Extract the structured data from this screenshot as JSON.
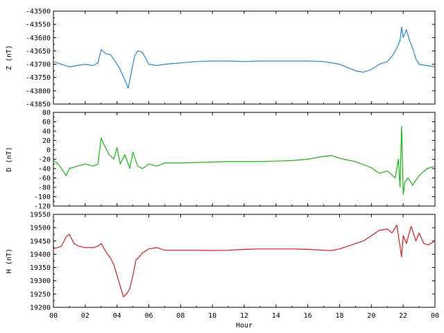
{
  "chart_data": [
    {
      "type": "line",
      "ylabel": "Z (nT)",
      "color": "#1e88e5",
      "ylim": [
        -43850,
        -43500
      ],
      "yticks": [
        -43500,
        -43550,
        -43600,
        -43650,
        -43700,
        -43750,
        -43800,
        -43850
      ],
      "xlim": [
        0,
        24
      ],
      "grid": false,
      "series": [
        {
          "x": [
            0,
            0.5,
            1,
            1.5,
            2,
            2.5,
            2.8,
            3,
            3.3,
            3.6,
            3.9,
            4.2,
            4.5,
            4.7,
            4.9,
            5.1,
            5.3,
            5.6,
            6,
            6.5,
            7,
            8,
            9,
            10,
            11,
            12,
            13,
            14,
            15,
            16,
            17,
            18,
            19,
            19.5,
            20,
            20.5,
            21,
            21.3,
            21.6,
            21.8,
            21.9,
            22,
            22.2,
            22.4,
            22.6,
            22.8,
            23,
            23.5,
            24
          ],
          "y": [
            -43690,
            -43700,
            -43710,
            -43705,
            -43700,
            -43705,
            -43695,
            -43645,
            -43660,
            -43665,
            -43690,
            -43720,
            -43760,
            -43790,
            -43730,
            -43670,
            -43650,
            -43655,
            -43700,
            -43705,
            -43700,
            -43695,
            -43690,
            -43688,
            -43688,
            -43690,
            -43688,
            -43688,
            -43688,
            -43688,
            -43690,
            -43700,
            -43725,
            -43730,
            -43720,
            -43700,
            -43690,
            -43670,
            -43640,
            -43610,
            -43560,
            -43600,
            -43570,
            -43610,
            -43640,
            -43680,
            -43700,
            -43705,
            -43710
          ]
        }
      ]
    },
    {
      "type": "line",
      "ylabel": "D (nT)",
      "color": "#13b80e",
      "ylim": [
        -120,
        80
      ],
      "yticks": [
        80,
        60,
        40,
        20,
        0,
        -20,
        -40,
        -60,
        -80,
        -100,
        -120
      ],
      "xlim": [
        0,
        24
      ],
      "grid": false,
      "series": [
        {
          "x": [
            0,
            0.3,
            0.6,
            0.8,
            1,
            1.5,
            2,
            2.5,
            2.8,
            3,
            3.2,
            3.5,
            3.8,
            4,
            4.2,
            4.5,
            4.8,
            5,
            5.3,
            5.6,
            6,
            6.5,
            7,
            8,
            9,
            10,
            11,
            12,
            13,
            14,
            15,
            16,
            17,
            17.5,
            18,
            19,
            20,
            20.5,
            21,
            21.5,
            21.7,
            21.8,
            21.9,
            22,
            22.1,
            22.3,
            22.6,
            23,
            23.5,
            24
          ],
          "y": [
            -22,
            -30,
            -45,
            -55,
            -40,
            -35,
            -30,
            -35,
            -30,
            25,
            10,
            -10,
            -20,
            5,
            -30,
            -10,
            -40,
            -5,
            -35,
            -40,
            -30,
            -35,
            -28,
            -28,
            -27,
            -26,
            -25,
            -25,
            -25,
            -24,
            -23,
            -20,
            -14,
            -12,
            -18,
            -25,
            -38,
            -50,
            -45,
            -60,
            -20,
            -80,
            50,
            -95,
            -70,
            -60,
            -75,
            -55,
            -40,
            -35
          ]
        }
      ]
    },
    {
      "type": "line",
      "ylabel": "H (nT)",
      "color": "#e01a1a",
      "ylim": [
        19200,
        19550
      ],
      "yticks": [
        19550,
        19500,
        19450,
        19400,
        19350,
        19300,
        19250,
        19200
      ],
      "xlim": [
        0,
        24
      ],
      "grid": false,
      "xlabel": "Hour",
      "xticks": [
        "00",
        "02",
        "04",
        "06",
        "08",
        "10",
        "12",
        "14",
        "16",
        "18",
        "20",
        "22",
        "00"
      ],
      "series": [
        {
          "x": [
            0,
            0.5,
            0.8,
            1,
            1.3,
            1.6,
            2,
            2.5,
            2.8,
            3,
            3.2,
            3.4,
            3.6,
            3.8,
            4,
            4.2,
            4.4,
            4.6,
            4.8,
            5,
            5.2,
            5.4,
            5.6,
            6,
            6.5,
            7,
            8,
            9,
            10,
            11,
            12,
            13,
            14,
            15,
            16,
            17,
            17.5,
            18,
            18.5,
            19,
            19.5,
            20,
            20.5,
            21,
            21.3,
            21.6,
            21.8,
            21.9,
            22,
            22.2,
            22.5,
            22.8,
            23,
            23.3,
            23.6,
            24
          ],
          "y": [
            19420,
            19430,
            19465,
            19475,
            19440,
            19430,
            19425,
            19425,
            19430,
            19440,
            19420,
            19400,
            19385,
            19360,
            19320,
            19280,
            19240,
            19250,
            19270,
            19320,
            19380,
            19390,
            19405,
            19420,
            19425,
            19415,
            19415,
            19415,
            19414,
            19415,
            19418,
            19420,
            19420,
            19420,
            19418,
            19415,
            19414,
            19420,
            19430,
            19440,
            19450,
            19470,
            19490,
            19495,
            19480,
            19510,
            19430,
            19390,
            19470,
            19440,
            19505,
            19450,
            19480,
            19440,
            19435,
            19450
          ]
        }
      ]
    }
  ]
}
